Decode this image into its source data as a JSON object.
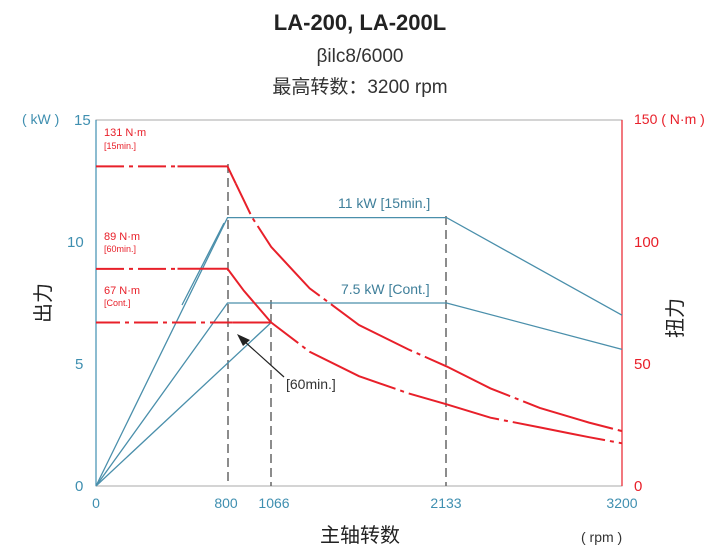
{
  "colors": {
    "power": "#4a8fab",
    "torque": "#e8202a",
    "left_axis": "#3f8fb0",
    "right_axis": "#e8202a",
    "frame": "#aaaaaa",
    "dashed_guide": "#666666"
  },
  "chart_data": {
    "type": "line",
    "title": "LA-200, LA-200L",
    "subtitle_lines": [
      "βilc8/6000",
      "最高转数：3200 rpm"
    ],
    "xlabel": "主轴转数",
    "x_unit": "( rpm )",
    "xlim": [
      0,
      3200
    ],
    "xticks": [
      0,
      800,
      1066,
      2133,
      3200
    ],
    "ylabel_left": "出力",
    "y_left_unit": "( kW )",
    "ylim_left": [
      0,
      15
    ],
    "yticks_left": [
      0,
      5,
      10,
      15
    ],
    "ylabel_right": "扭力",
    "y_right_unit": "150 ( N·m )",
    "ylim_right": [
      0,
      150
    ],
    "yticks_right": [
      "0",
      "50",
      "100"
    ],
    "grid": false,
    "legend": "none",
    "series": [
      {
        "axis": "left",
        "style": "solid",
        "points": [
          [
            0,
            0
          ],
          [
            800,
            11
          ],
          [
            2133,
            11
          ],
          [
            3200,
            7
          ]
        ]
      },
      {
        "axis": "left",
        "style": "solid",
        "points": [
          [
            0,
            0
          ],
          [
            800,
            7.5
          ],
          [
            2133,
            7.5
          ],
          [
            3200,
            5.6
          ]
        ]
      },
      {
        "axis": "left",
        "style": "solid",
        "points": [
          [
            0,
            0
          ],
          [
            1066,
            6.7
          ]
        ]
      },
      {
        "axis": "right",
        "style": "dashdot",
        "points": [
          [
            0,
            131
          ],
          [
            800,
            131
          ],
          [
            850,
            124
          ],
          [
            950,
            110
          ],
          [
            1066,
            98
          ],
          [
            1300,
            81
          ],
          [
            1600,
            66
          ],
          [
            1900,
            56
          ],
          [
            2133,
            49
          ],
          [
            2400,
            40
          ],
          [
            2700,
            32
          ],
          [
            3000,
            26
          ],
          [
            3200,
            22.5
          ]
        ]
      },
      {
        "axis": "right",
        "style": "dashdot",
        "points": [
          [
            0,
            89
          ],
          [
            800,
            89
          ],
          [
            900,
            80
          ],
          [
            1066,
            67
          ],
          [
            1300,
            55
          ],
          [
            1600,
            45
          ],
          [
            1900,
            38
          ],
          [
            2133,
            33.5
          ],
          [
            2400,
            28
          ],
          [
            2700,
            24
          ],
          [
            3000,
            20
          ],
          [
            3200,
            17.5
          ]
        ]
      },
      {
        "axis": "right",
        "style": "dashdot",
        "points": [
          [
            0,
            67
          ],
          [
            1066,
            67
          ]
        ]
      }
    ],
    "annotations": {
      "t131_value": "131 N·m",
      "t131_note": "[15min.]",
      "t89_value": "89 N·m",
      "t89_note": "[60min.]",
      "t67_value": "67 N·m",
      "t67_note": "[Cont.]",
      "p11": "11 kW [15min.]",
      "p75": "7.5 kW [Cont.]",
      "min60": "[60min.]"
    }
  }
}
